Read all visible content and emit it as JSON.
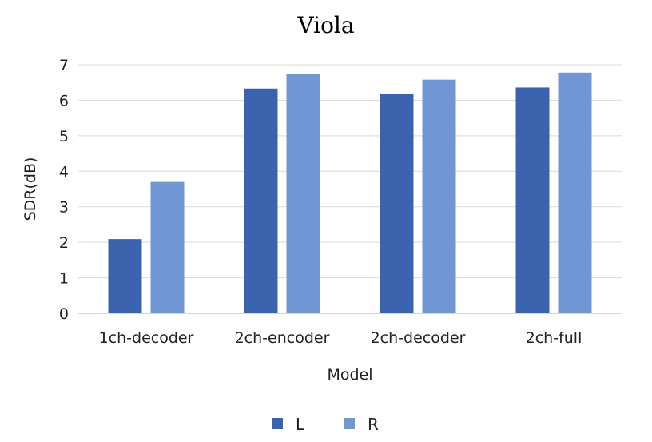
{
  "chart_data": {
    "type": "bar",
    "title": "Viola",
    "xlabel": "Model",
    "ylabel": "SDR(dB)",
    "categories": [
      "1ch-decoder",
      "2ch-encoder",
      "2ch-decoder",
      "2ch-full"
    ],
    "series": [
      {
        "name": "L",
        "color": "#3B62AD",
        "values": [
          2.09,
          6.33,
          6.18,
          6.36
        ]
      },
      {
        "name": "R",
        "color": "#7096D3",
        "values": [
          3.7,
          6.74,
          6.58,
          6.78
        ]
      }
    ],
    "ylim": [
      0,
      7
    ],
    "yticks": [
      0,
      1,
      2,
      3,
      4,
      5,
      6,
      7
    ],
    "grid": true,
    "legend": "bottom-center"
  }
}
